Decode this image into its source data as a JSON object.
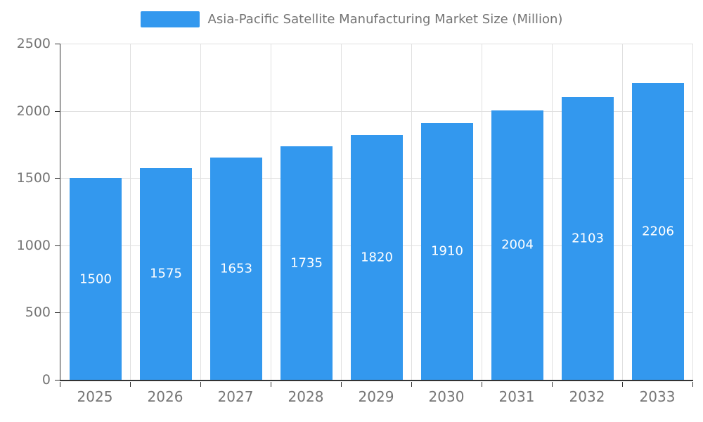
{
  "legend": {
    "title": "Asia-Pacific Satellite Manufacturing Market Size (Million)"
  },
  "colors": {
    "bar": "#3398ee",
    "axis": "#333333",
    "grid": "#e0e0e0",
    "tick_text": "#757575",
    "bar_label_text": "#ffffff"
  },
  "chart_data": {
    "type": "bar",
    "title": "Asia-Pacific Satellite Manufacturing Market Size (Million)",
    "categories": [
      "2025",
      "2026",
      "2027",
      "2028",
      "2029",
      "2030",
      "2031",
      "2032",
      "2033"
    ],
    "values": [
      1500,
      1575,
      1653,
      1735,
      1820,
      1910,
      2004,
      2103,
      2206
    ],
    "xlabel": "",
    "ylabel": "",
    "ylim": [
      0,
      2500
    ],
    "yticks": [
      0,
      500,
      1000,
      1500,
      2000,
      2500
    ],
    "grid": true,
    "legend_position": "top",
    "value_labels": "inside-center"
  }
}
